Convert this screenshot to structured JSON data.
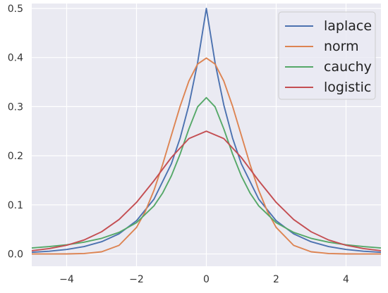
{
  "chart_data": {
    "type": "line",
    "title": "",
    "xlabel": "",
    "ylabel": "",
    "xlim": [
      -5,
      5
    ],
    "ylim": [
      -0.025,
      0.51
    ],
    "x_ticks": [
      -4,
      -2,
      0,
      2,
      4
    ],
    "x_tick_labels": [
      "−4",
      "−2",
      "0",
      "2",
      "4"
    ],
    "y_ticks": [
      0.0,
      0.1,
      0.2,
      0.3,
      0.4,
      0.5
    ],
    "y_tick_labels": [
      "0.0",
      "0.1",
      "0.2",
      "0.3",
      "0.4",
      "0.5"
    ],
    "grid": true,
    "legend_position": "top-right",
    "background_color": "#EAEAF2",
    "grid_color": "#FFFFFF",
    "series": [
      {
        "name": "laplace",
        "color": "#4C72B0",
        "x": [
          -5,
          -4.5,
          -4,
          -3.5,
          -3,
          -2.5,
          -2,
          -1.5,
          -1,
          -0.75,
          -0.5,
          -0.25,
          0,
          0.25,
          0.5,
          0.75,
          1,
          1.5,
          2,
          2.5,
          3,
          3.5,
          4,
          4.5,
          5
        ],
        "y": [
          0.0034,
          0.0056,
          0.0092,
          0.0151,
          0.0249,
          0.041,
          0.0677,
          0.1116,
          0.1839,
          0.2362,
          0.3033,
          0.3894,
          0.5,
          0.3894,
          0.3033,
          0.2362,
          0.1839,
          0.1116,
          0.0677,
          0.041,
          0.0249,
          0.0151,
          0.0092,
          0.0056,
          0.0034
        ]
      },
      {
        "name": "norm",
        "color": "#DD8452",
        "x": [
          -5,
          -4.5,
          -4,
          -3.5,
          -3,
          -2.5,
          -2,
          -1.75,
          -1.5,
          -1.25,
          -1,
          -0.75,
          -0.5,
          -0.25,
          0,
          0.25,
          0.5,
          0.75,
          1,
          1.25,
          1.5,
          1.75,
          2,
          2.5,
          3,
          3.5,
          4,
          4.5,
          5
        ],
        "y": [
          0.0,
          0.0,
          0.0001,
          0.0009,
          0.0044,
          0.0175,
          0.054,
          0.0863,
          0.1295,
          0.1826,
          0.242,
          0.3011,
          0.3521,
          0.3867,
          0.3989,
          0.3867,
          0.3521,
          0.3011,
          0.242,
          0.1826,
          0.1295,
          0.0863,
          0.054,
          0.0175,
          0.0044,
          0.0009,
          0.0001,
          0.0,
          0.0
        ]
      },
      {
        "name": "cauchy",
        "color": "#55A868",
        "x": [
          -5,
          -4.5,
          -4,
          -3.5,
          -3,
          -2.5,
          -2,
          -1.5,
          -1.25,
          -1,
          -0.75,
          -0.5,
          -0.25,
          0,
          0.25,
          0.5,
          0.75,
          1,
          1.25,
          1.5,
          2,
          2.5,
          3,
          3.5,
          4,
          4.5,
          5
        ],
        "y": [
          0.0122,
          0.015,
          0.0187,
          0.0241,
          0.0318,
          0.0439,
          0.0637,
          0.0979,
          0.1242,
          0.1592,
          0.2037,
          0.2546,
          0.2996,
          0.3183,
          0.2996,
          0.2546,
          0.2037,
          0.1592,
          0.1242,
          0.0979,
          0.0637,
          0.0439,
          0.0318,
          0.0241,
          0.0187,
          0.015,
          0.0122
        ]
      },
      {
        "name": "logistic",
        "color": "#C44E52",
        "x": [
          -5,
          -4.5,
          -4,
          -3.5,
          -3,
          -2.5,
          -2,
          -1.5,
          -1,
          -0.5,
          0,
          0.5,
          1,
          1.5,
          2,
          2.5,
          3,
          3.5,
          4,
          4.5,
          5
        ],
        "y": [
          0.0066,
          0.011,
          0.0177,
          0.0285,
          0.0452,
          0.0701,
          0.105,
          0.1491,
          0.1966,
          0.235,
          0.25,
          0.235,
          0.1966,
          0.1491,
          0.105,
          0.0701,
          0.0452,
          0.0285,
          0.0177,
          0.011,
          0.0066
        ]
      }
    ]
  }
}
